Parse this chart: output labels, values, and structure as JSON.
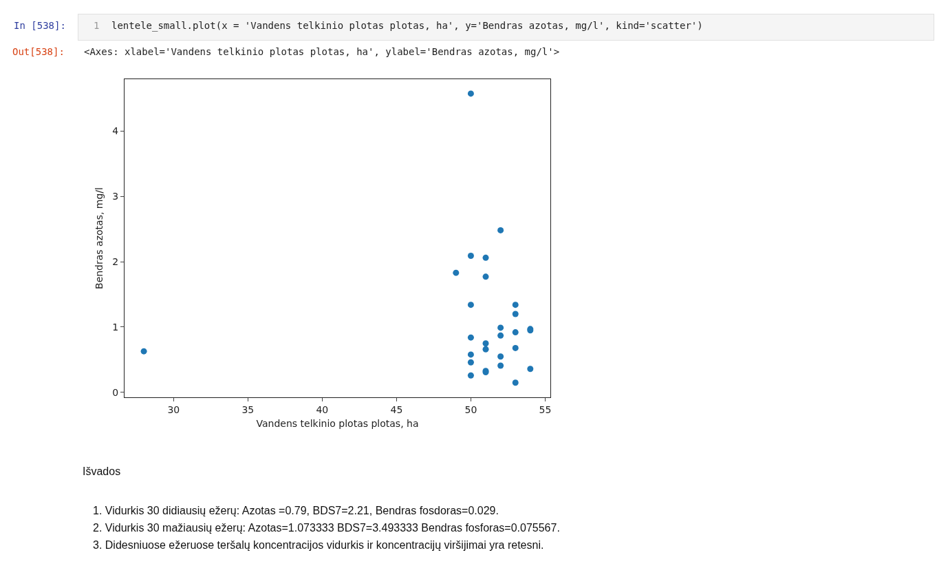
{
  "chart_data": {
    "type": "scatter",
    "xlabel": "Vandens telkinio plotas plotas, ha",
    "ylabel": "Bendras azotas, mg/l",
    "x": [
      28,
      49,
      50,
      50,
      50,
      50,
      50,
      50,
      50,
      51,
      51,
      51,
      51,
      51,
      51,
      52,
      52,
      52,
      52,
      52,
      53,
      53,
      53,
      53,
      53,
      54,
      54,
      54
    ],
    "series": [
      {
        "color": "#1f77b4",
        "values": [
          0.63,
          1.83,
          4.57,
          2.09,
          1.34,
          0.84,
          0.58,
          0.46,
          0.26,
          2.06,
          1.77,
          0.75,
          0.66,
          0.33,
          0.31,
          2.48,
          0.99,
          0.87,
          0.55,
          0.41,
          1.34,
          1.2,
          0.92,
          0.68,
          0.15,
          0.97,
          0.95,
          0.36
        ]
      }
    ],
    "xlim": [
      26.7,
      55.35
    ],
    "ylim": [
      -0.074,
      4.79
    ],
    "xticks": [
      30,
      35,
      40,
      45,
      50,
      55
    ],
    "yticks": [
      0,
      1,
      2,
      3,
      4
    ],
    "grid": false,
    "marker": "circle",
    "annotations": [
      "In [538]:",
      "1",
      "lentele_small.plot(x = 'Vandens telkinio plotas plotas, ha', y='Bendras azotas, mg/l', kind='scatter')",
      "Out[538]:",
      "<Axes: xlabel='Vandens telkinio plotas plotas, ha', ylabel='Bendras azotas, mg/l'>",
      "Išvados",
      "1. Vidurkis 30 didiausių ežerų: Azotas =0.79, BDS7=2.21, Bendras fosdoras=0.029.",
      "2. Vidurkis 30 mažiausių ežerų: Azotas=1.073333 BDS7=3.493333 Bendras fosforas=0.075567.",
      "3. Didesniuose ežeruose teršalų koncentracijos vidurkis ir koncentracijų viršijimai yra retesni."
    ]
  }
}
